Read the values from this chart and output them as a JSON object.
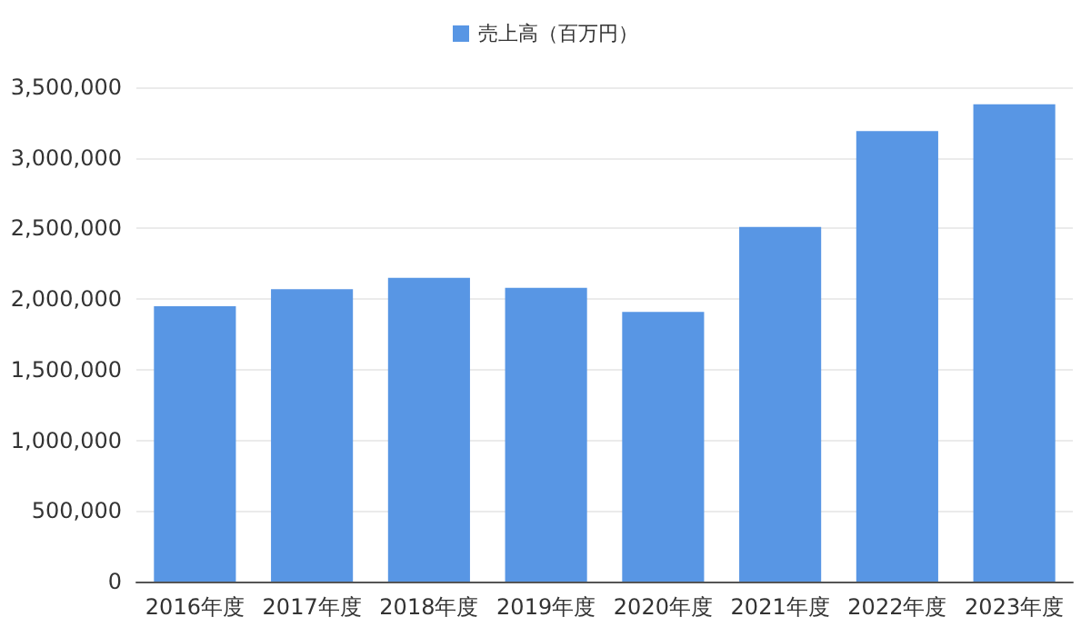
{
  "chart_data": {
    "type": "bar",
    "categories": [
      "2016年度",
      "2017年度",
      "2018年度",
      "2019年度",
      "2020年度",
      "2021年度",
      "2022年度",
      "2023年度"
    ],
    "series": [
      {
        "name": "売上高（百万円）",
        "color": "#5896e4",
        "values": [
          1950000,
          2070000,
          2150000,
          2080000,
          1910000,
          2510000,
          3190000,
          3380000
        ]
      }
    ],
    "ylim": [
      0,
      3500000
    ],
    "yticks": [
      0,
      {
        "value": 500000,
        "label": "500,000"
      },
      {
        "value": 1000000,
        "label": "1,000,000"
      },
      {
        "value": 1500000,
        "label": "1,500,000"
      },
      {
        "value": 2000000,
        "label": "2,000,000"
      },
      {
        "value": 2500000,
        "label": "2,500,000"
      },
      {
        "value": 3000000,
        "label": "3,000,000"
      },
      {
        "value": 3500000,
        "label": "3,500,000"
      }
    ],
    "grid": "y",
    "legend": "top"
  }
}
